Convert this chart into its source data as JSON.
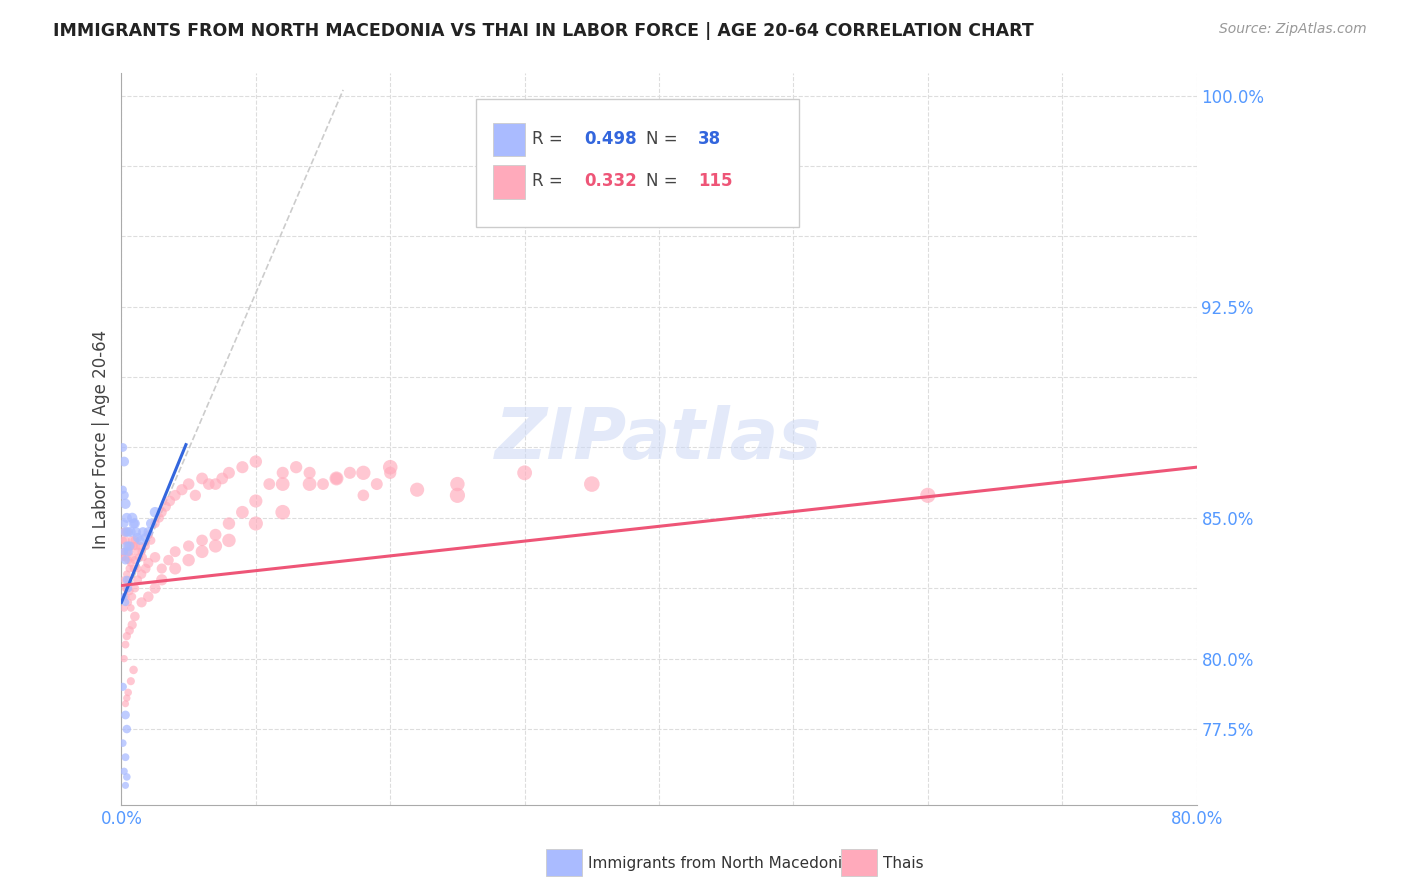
{
  "title": "IMMIGRANTS FROM NORTH MACEDONIA VS THAI IN LABOR FORCE | AGE 20-64 CORRELATION CHART",
  "source": "Source: ZipAtlas.com",
  "ylabel": "In Labor Force | Age 20-64",
  "xlim": [
    0.0,
    0.8
  ],
  "ylim": [
    0.748,
    1.008
  ],
  "blue_R": 0.498,
  "blue_N": 38,
  "pink_R": 0.332,
  "pink_N": 115,
  "blue_color": "#aabbff",
  "pink_color": "#ffaabb",
  "blue_line_color": "#3366dd",
  "pink_line_color": "#ee5577",
  "tick_label_color": "#5599ff",
  "title_color": "#222222",
  "axis_label_color": "#444444",
  "legend_label_blue": "Immigrants from North Macedonia",
  "legend_label_pink": "Thais",
  "watermark": "ZIPatlas",
  "blue_scatter_x": [
    0.001,
    0.001,
    0.002,
    0.002,
    0.002,
    0.002,
    0.002,
    0.003,
    0.003,
    0.003,
    0.003,
    0.004,
    0.004,
    0.004,
    0.005,
    0.005,
    0.005,
    0.006,
    0.007,
    0.008,
    0.009,
    0.01,
    0.011,
    0.012,
    0.014,
    0.016,
    0.018,
    0.02,
    0.022,
    0.025,
    0.001,
    0.001,
    0.002,
    0.003,
    0.003,
    0.003,
    0.004,
    0.004
  ],
  "blue_scatter_y": [
    0.875,
    0.86,
    0.87,
    0.858,
    0.848,
    0.838,
    0.822,
    0.855,
    0.845,
    0.835,
    0.82,
    0.85,
    0.84,
    0.828,
    0.845,
    0.838,
    0.825,
    0.84,
    0.845,
    0.85,
    0.848,
    0.848,
    0.845,
    0.843,
    0.842,
    0.845,
    0.843,
    0.845,
    0.848,
    0.852,
    0.79,
    0.77,
    0.76,
    0.78,
    0.765,
    0.755,
    0.775,
    0.758
  ],
  "blue_scatter_s": [
    40,
    35,
    50,
    45,
    38,
    32,
    28,
    55,
    48,
    40,
    30,
    52,
    44,
    35,
    48,
    42,
    34,
    46,
    50,
    55,
    52,
    50,
    48,
    46,
    44,
    48,
    46,
    48,
    52,
    58,
    35,
    30,
    28,
    40,
    32,
    26,
    38,
    30
  ],
  "pink_scatter_x": [
    0.001,
    0.001,
    0.002,
    0.002,
    0.002,
    0.003,
    0.003,
    0.003,
    0.004,
    0.004,
    0.004,
    0.005,
    0.005,
    0.005,
    0.006,
    0.006,
    0.007,
    0.007,
    0.008,
    0.008,
    0.009,
    0.009,
    0.01,
    0.01,
    0.011,
    0.012,
    0.012,
    0.013,
    0.014,
    0.015,
    0.016,
    0.018,
    0.02,
    0.022,
    0.025,
    0.028,
    0.03,
    0.033,
    0.036,
    0.04,
    0.045,
    0.05,
    0.055,
    0.06,
    0.065,
    0.07,
    0.075,
    0.08,
    0.09,
    0.1,
    0.11,
    0.12,
    0.13,
    0.14,
    0.15,
    0.16,
    0.17,
    0.18,
    0.19,
    0.2,
    0.002,
    0.003,
    0.004,
    0.005,
    0.006,
    0.007,
    0.008,
    0.01,
    0.012,
    0.015,
    0.018,
    0.02,
    0.025,
    0.03,
    0.035,
    0.04,
    0.05,
    0.06,
    0.07,
    0.08,
    0.09,
    0.1,
    0.12,
    0.14,
    0.16,
    0.18,
    0.2,
    0.22,
    0.25,
    0.3,
    0.002,
    0.003,
    0.004,
    0.006,
    0.008,
    0.01,
    0.015,
    0.02,
    0.025,
    0.03,
    0.04,
    0.05,
    0.06,
    0.07,
    0.08,
    0.1,
    0.12,
    0.6,
    0.25,
    0.35,
    0.003,
    0.004,
    0.005,
    0.007,
    0.009
  ],
  "pink_scatter_y": [
    0.842,
    0.836,
    0.845,
    0.838,
    0.828,
    0.842,
    0.836,
    0.825,
    0.845,
    0.838,
    0.83,
    0.84,
    0.835,
    0.828,
    0.838,
    0.832,
    0.84,
    0.834,
    0.842,
    0.836,
    0.84,
    0.832,
    0.842,
    0.835,
    0.84,
    0.838,
    0.832,
    0.836,
    0.84,
    0.838,
    0.836,
    0.84,
    0.844,
    0.842,
    0.848,
    0.85,
    0.852,
    0.854,
    0.856,
    0.858,
    0.86,
    0.862,
    0.858,
    0.864,
    0.862,
    0.862,
    0.864,
    0.866,
    0.868,
    0.87,
    0.862,
    0.866,
    0.868,
    0.866,
    0.862,
    0.864,
    0.866,
    0.858,
    0.862,
    0.866,
    0.818,
    0.822,
    0.825,
    0.82,
    0.824,
    0.818,
    0.822,
    0.825,
    0.828,
    0.83,
    0.832,
    0.834,
    0.836,
    0.832,
    0.835,
    0.838,
    0.84,
    0.842,
    0.844,
    0.848,
    0.852,
    0.856,
    0.862,
    0.862,
    0.864,
    0.866,
    0.868,
    0.86,
    0.862,
    0.866,
    0.8,
    0.805,
    0.808,
    0.81,
    0.812,
    0.815,
    0.82,
    0.822,
    0.825,
    0.828,
    0.832,
    0.835,
    0.838,
    0.84,
    0.842,
    0.848,
    0.852,
    0.858,
    0.858,
    0.862,
    0.784,
    0.786,
    0.788,
    0.792,
    0.796
  ],
  "pink_scatter_s": [
    35,
    30,
    38,
    32,
    28,
    40,
    35,
    30,
    42,
    36,
    30,
    40,
    35,
    30,
    38,
    33,
    38,
    33,
    40,
    35,
    38,
    32,
    40,
    35,
    38,
    36,
    30,
    34,
    38,
    36,
    34,
    38,
    42,
    40,
    46,
    48,
    52,
    54,
    58,
    62,
    66,
    70,
    66,
    72,
    70,
    70,
    72,
    74,
    76,
    80,
    72,
    76,
    78,
    76,
    72,
    74,
    76,
    70,
    74,
    78,
    30,
    34,
    38,
    32,
    36,
    30,
    34,
    38,
    42,
    46,
    50,
    54,
    58,
    54,
    58,
    62,
    66,
    70,
    74,
    80,
    84,
    90,
    98,
    98,
    102,
    106,
    110,
    104,
    108,
    114,
    28,
    32,
    36,
    40,
    44,
    48,
    54,
    58,
    62,
    66,
    74,
    80,
    86,
    90,
    94,
    104,
    112,
    120,
    120,
    126,
    26,
    28,
    30,
    34,
    38
  ],
  "blue_line_x": [
    0.0,
    0.048
  ],
  "blue_line_y": [
    0.82,
    0.876
  ],
  "pink_line_x": [
    0.0,
    0.8
  ],
  "pink_line_y": [
    0.826,
    0.868
  ],
  "ref_line_x": [
    0.001,
    0.165
  ],
  "ref_line_y": [
    0.82,
    1.002
  ],
  "yticks": [
    0.775,
    0.8,
    0.85,
    0.925,
    1.0
  ],
  "ytick_labels": [
    "77.5%",
    "80.0%",
    "85.0%",
    "92.5%",
    "100.0%"
  ],
  "xticks": [
    0.0,
    0.1,
    0.2,
    0.3,
    0.4,
    0.5,
    0.6,
    0.7,
    0.8
  ],
  "xtick_labels": [
    "0.0%",
    "",
    "",
    "",
    "",
    "",
    "",
    "",
    "80.0%"
  ]
}
